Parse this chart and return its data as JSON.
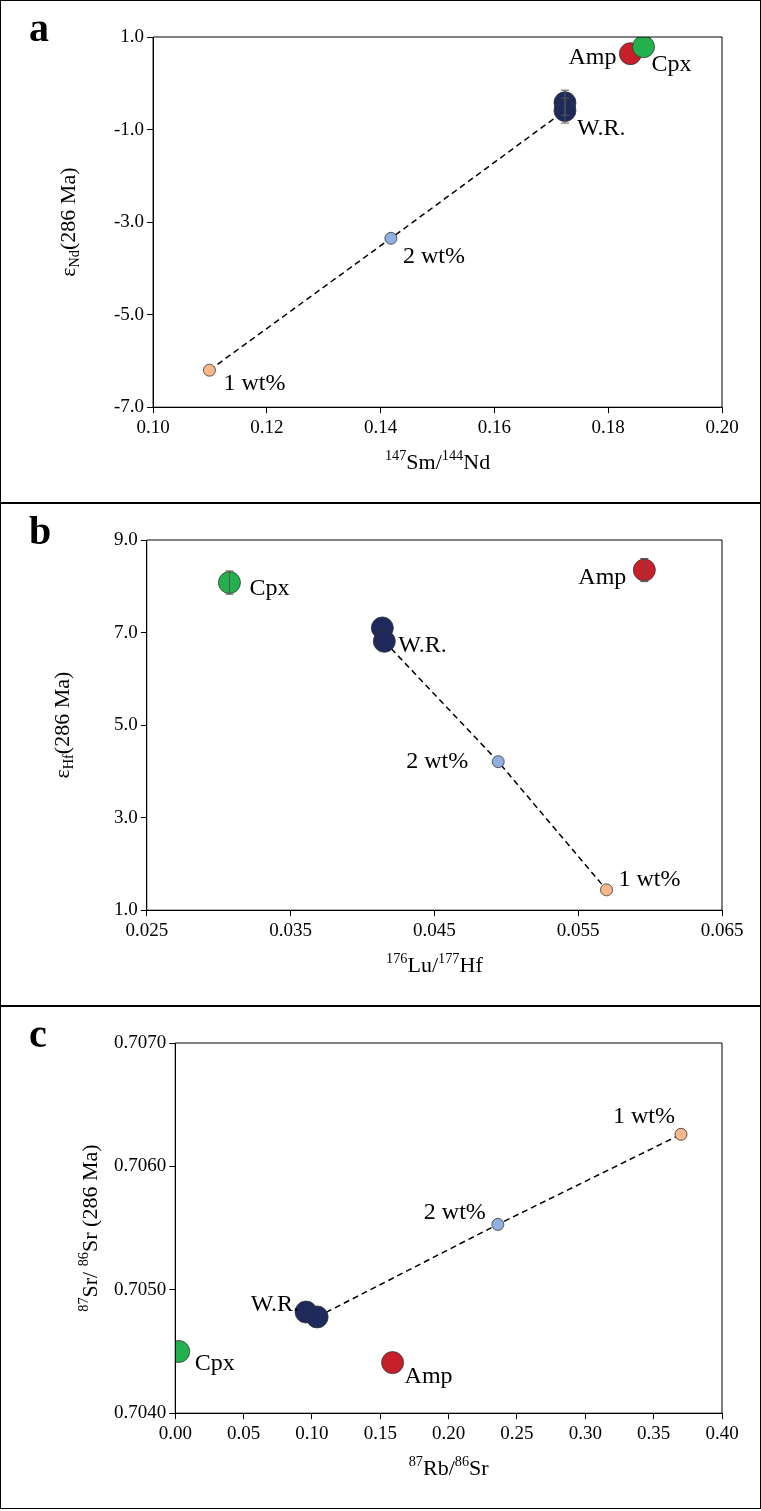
{
  "chart_data": [
    {
      "type": "scatter",
      "title": "a",
      "xlabel": "$^{147}$Sm/$^{144}$Nd",
      "ylabel": "ε$_{Nd}$(286 Ma)",
      "xlim": [
        0.1,
        0.2
      ],
      "xticks": [
        {
          "value": 0.1,
          "label": "0.10"
        },
        {
          "value": 0.12,
          "label": "0.12"
        },
        {
          "value": 0.14,
          "label": "0.14"
        },
        {
          "value": 0.16,
          "label": "0.16"
        },
        {
          "value": 0.18,
          "label": "0.18"
        },
        {
          "value": 0.2,
          "label": "0.20"
        }
      ],
      "ylim": [
        -7.0,
        1.0
      ],
      "yticks": [
        {
          "value": -7,
          "label": "-7.0"
        },
        {
          "value": -5,
          "label": "-5.0"
        },
        {
          "value": -3,
          "label": "-3.0"
        },
        {
          "value": -1,
          "label": "-1.0"
        },
        {
          "value": 1,
          "label": "1.0"
        }
      ],
      "grid": false,
      "legend": false,
      "marker": "circle",
      "series": [
        {
          "type": "line",
          "color": "#000000",
          "line_style": "dashed",
          "marker": "none",
          "x": [
            0.1099,
            0.1418,
            0.1724
          ],
          "values": [
            -6.2,
            -3.35,
            -0.59
          ]
        },
        {
          "name": "W.R.",
          "color": "#1f2a5c",
          "x": [
            0.1724,
            0.1724
          ],
          "values": [
            -0.42,
            -0.59
          ],
          "errors": [
            0.27,
            0.27
          ]
        },
        {
          "name": "2 wt%",
          "color": "#8fb0e0",
          "x": [
            0.1418
          ],
          "values": [
            -3.35
          ]
        },
        {
          "name": "1 wt%",
          "color": "#f8b88b",
          "x": [
            0.1099
          ],
          "values": [
            -6.2
          ]
        },
        {
          "name": "Cpx",
          "color": "#22b14c",
          "x": [
            0.1862
          ],
          "values": [
            0.79
          ]
        },
        {
          "name": "Amp",
          "color": "#c8202a",
          "x": [
            0.1839
          ],
          "values": [
            0.64
          ]
        }
      ]
    },
    {
      "type": "scatter",
      "title": "b",
      "xlabel": "$^{176}$Lu/$^{177}$Hf",
      "ylabel": "ε$_{Hf}$(286 Ma)",
      "xlim": [
        0.025,
        0.065
      ],
      "xticks": [
        0.025,
        0.035,
        0.045,
        0.055,
        0.065
      ],
      "ylim": [
        1.0,
        9.0
      ],
      "yticks": [
        {
          "value": 1,
          "label": "1.0"
        },
        {
          "value": 3,
          "label": "3.0"
        },
        {
          "value": 5,
          "label": "5.0"
        },
        {
          "value": 7,
          "label": "7.0"
        },
        {
          "value": 9,
          "label": "9.0"
        }
      ],
      "grid": false,
      "legend": false,
      "marker": "circle",
      "series": [
        {
          "type": "line",
          "color": "#000000",
          "line_style": "dashed",
          "marker": "none",
          "x": [
            0.04152,
            0.04944,
            0.05697
          ],
          "values": [
            6.81,
            4.21,
            1.44
          ]
        },
        {
          "name": "W.R.",
          "color": "#1f2a5c",
          "x": [
            0.04138,
            0.04152
          ],
          "values": [
            7.1,
            6.81
          ]
        },
        {
          "name": "2 wt%",
          "color": "#8fb0e0",
          "x": [
            0.04944
          ],
          "values": [
            4.21
          ]
        },
        {
          "name": "1 wt%",
          "color": "#f8b88b",
          "x": [
            0.05697
          ],
          "values": [
            1.44
          ]
        },
        {
          "name": "Cpx",
          "color": "#22b14c",
          "x": [
            0.03075
          ],
          "values": [
            8.08
          ],
          "errors": [
            0.25
          ]
        },
        {
          "name": "Amp",
          "color": "#c8202a",
          "x": [
            0.0596
          ],
          "values": [
            8.35
          ],
          "errors": [
            0.25
          ]
        }
      ]
    },
    {
      "type": "scatter",
      "title": "c",
      "xlabel": "$^{87}$Rb/$^{86}$Sr",
      "ylabel": "$^{87}$Sr/ $^{86}$Sr (286 Ma)",
      "xlim": [
        0.0,
        0.4
      ],
      "xticks": [
        {
          "value": 0,
          "label": "0.00"
        },
        {
          "value": 0.05,
          "label": "0.05"
        },
        {
          "value": 0.1,
          "label": "0.10"
        },
        {
          "value": 0.15,
          "label": "0.15"
        },
        {
          "value": 0.2,
          "label": "0.20"
        },
        {
          "value": 0.25,
          "label": "0.25"
        },
        {
          "value": 0.3,
          "label": "0.30"
        },
        {
          "value": 0.35,
          "label": "0.35"
        },
        {
          "value": 0.4,
          "label": "0.40"
        }
      ],
      "ylim": [
        0.704,
        0.707
      ],
      "yticks": [
        {
          "value": 0.704,
          "label": "0.7040"
        },
        {
          "value": 0.705,
          "label": "0.7050"
        },
        {
          "value": 0.706,
          "label": "0.7060"
        },
        {
          "value": 0.707,
          "label": "0.7070"
        }
      ],
      "grid": false,
      "legend": false,
      "marker": "circle",
      "series": [
        {
          "type": "line",
          "color": "#000000",
          "line_style": "dashed",
          "marker": "none",
          "x": [
            0.1038,
            0.236,
            0.37
          ],
          "values": [
            0.70478,
            0.70553,
            0.70626
          ]
        },
        {
          "name": "W.R.",
          "color": "#1f2a5c",
          "x": [
            0.0957,
            0.1038
          ],
          "values": [
            0.70482,
            0.70478
          ]
        },
        {
          "name": "2 wt%",
          "color": "#8fb0e0",
          "x": [
            0.236
          ],
          "values": [
            0.70553
          ]
        },
        {
          "name": "1 wt%",
          "color": "#f8b88b",
          "x": [
            0.37
          ],
          "values": [
            0.70626
          ]
        },
        {
          "name": "Cpx",
          "color": "#22b14c",
          "x": [
            0.0025
          ],
          "values": [
            0.7045
          ]
        },
        {
          "name": "Amp",
          "color": "#c8202a",
          "x": [
            0.159
          ],
          "values": [
            0.70441
          ]
        }
      ]
    }
  ]
}
